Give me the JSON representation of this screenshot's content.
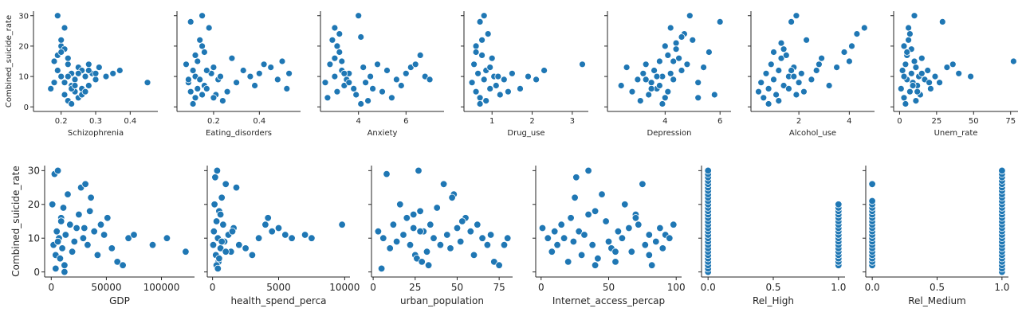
{
  "marker_color": "#1f77b4",
  "marker_edge": "#ffffff",
  "chart_data": [
    {
      "type": "scatter",
      "xlabel": "Schizophrenia",
      "ylabel": "Combined_suicide_rate",
      "xlim": [
        0.12,
        0.48
      ],
      "ylim": [
        -1.5,
        31.5
      ],
      "xticks": [
        0.2,
        0.3,
        0.4
      ],
      "xtick_labels": [
        "0.2",
        "0.3",
        "0.4"
      ],
      "yticks": [
        0,
        10,
        20,
        30
      ],
      "ytick_labels": [
        "0",
        "10",
        "20",
        "30"
      ],
      "x": [
        0.17,
        0.18,
        0.19,
        0.19,
        0.2,
        0.2,
        0.21,
        0.21,
        0.21,
        0.22,
        0.22,
        0.23,
        0.23,
        0.24,
        0.24,
        0.25,
        0.25,
        0.26,
        0.26,
        0.27,
        0.28,
        0.28,
        0.29,
        0.3,
        0.31,
        0.33,
        0.35,
        0.37,
        0.45,
        0.19,
        0.2,
        0.22,
        0.23,
        0.24,
        0.25,
        0.26,
        0.27,
        0.21,
        0.2,
        0.22,
        0.23,
        0.18,
        0.24,
        0.28,
        0.3
      ],
      "y": [
        6,
        15,
        30,
        12,
        10,
        20,
        26,
        8,
        4,
        14,
        2,
        11,
        7,
        5,
        9,
        13,
        3,
        12,
        6,
        10,
        7,
        14,
        11,
        9,
        13,
        10,
        11,
        12,
        8,
        17,
        22,
        16,
        1,
        9,
        11,
        4,
        5,
        19,
        18,
        10,
        6,
        8,
        7,
        12,
        11
      ]
    },
    {
      "type": "scatter",
      "xlabel": "Eating_disorders",
      "ylabel": "",
      "xlim": [
        0.04,
        0.58
      ],
      "ylim": [
        -1.5,
        31.5
      ],
      "xticks": [
        0.2,
        0.4
      ],
      "xtick_labels": [
        "0.2",
        "0.4"
      ],
      "yticks": [
        0,
        10,
        20,
        30
      ],
      "ytick_labels": [],
      "x": [
        0.08,
        0.09,
        0.1,
        0.1,
        0.11,
        0.12,
        0.12,
        0.13,
        0.14,
        0.15,
        0.15,
        0.16,
        0.17,
        0.18,
        0.19,
        0.2,
        0.21,
        0.22,
        0.24,
        0.26,
        0.28,
        0.3,
        0.33,
        0.36,
        0.38,
        0.4,
        0.42,
        0.45,
        0.48,
        0.5,
        0.52,
        0.53,
        0.12,
        0.14,
        0.16,
        0.11,
        0.13,
        0.15,
        0.17,
        0.09,
        0.2,
        0.23
      ],
      "y": [
        14,
        8,
        28,
        5,
        12,
        10,
        3,
        15,
        9,
        30,
        20,
        7,
        6,
        26,
        11,
        13,
        4,
        9,
        2,
        5,
        16,
        8,
        12,
        10,
        7,
        11,
        14,
        13,
        9,
        15,
        6,
        11,
        17,
        22,
        18,
        1,
        6,
        4,
        12,
        9,
        3,
        10
      ]
    },
    {
      "type": "scatter",
      "xlabel": "Anxiety",
      "ylabel": "",
      "xlim": [
        2.4,
        7.6
      ],
      "ylim": [
        -1.5,
        31.5
      ],
      "xticks": [
        4,
        6
      ],
      "xtick_labels": [
        "4",
        "6"
      ],
      "yticks": [
        0,
        10,
        20,
        30
      ],
      "ytick_labels": [],
      "x": [
        2.6,
        2.7,
        2.8,
        2.9,
        3.0,
        3.0,
        3.1,
        3.2,
        3.3,
        3.4,
        3.5,
        3.6,
        3.8,
        3.9,
        4.0,
        4.1,
        4.2,
        4.3,
        4.4,
        4.5,
        4.6,
        4.8,
        5.0,
        5.2,
        5.4,
        5.6,
        5.8,
        6.0,
        6.2,
        6.4,
        6.6,
        6.8,
        7.0,
        3.1,
        3.2,
        3.3,
        3.0,
        3.4,
        4.1,
        3.6
      ],
      "y": [
        8,
        3,
        14,
        22,
        26,
        10,
        5,
        18,
        12,
        7,
        9,
        11,
        6,
        4,
        30,
        23,
        13,
        8,
        2,
        10,
        6,
        14,
        5,
        12,
        3,
        9,
        7,
        11,
        13,
        14,
        17,
        10,
        9,
        20,
        24,
        15,
        16,
        11,
        1,
        8
      ]
    },
    {
      "type": "scatter",
      "xlabel": "Drug_use",
      "ylabel": "",
      "xlim": [
        0.3,
        3.4
      ],
      "ylim": [
        -1.5,
        31.5
      ],
      "xticks": [
        1,
        2,
        3
      ],
      "xtick_labels": [
        "1",
        "2",
        "3"
      ],
      "yticks": [
        0,
        10,
        20,
        30
      ],
      "ytick_labels": [],
      "x": [
        0.5,
        0.55,
        0.6,
        0.6,
        0.65,
        0.7,
        0.7,
        0.75,
        0.8,
        0.8,
        0.85,
        0.9,
        0.95,
        1.0,
        1.05,
        1.1,
        1.2,
        1.3,
        1.4,
        1.5,
        1.7,
        1.9,
        2.1,
        2.3,
        3.25,
        0.75,
        0.85,
        0.6,
        0.7,
        0.95,
        1.15
      ],
      "y": [
        8,
        14,
        20,
        5,
        11,
        28,
        3,
        17,
        30,
        9,
        12,
        24,
        6,
        16,
        10,
        7,
        4,
        9,
        5,
        11,
        6,
        10,
        9,
        12,
        14,
        22,
        2,
        18,
        1,
        13,
        10
      ]
    },
    {
      "type": "scatter",
      "xlabel": "Depression",
      "ylabel": "",
      "xlim": [
        1.9,
        6.4
      ],
      "ylim": [
        -1.5,
        31.5
      ],
      "xticks": [
        4,
        6
      ],
      "xtick_labels": [
        "4",
        "6"
      ],
      "yticks": [
        0,
        10,
        20,
        30
      ],
      "ytick_labels": [],
      "x": [
        2.4,
        2.6,
        2.8,
        3.0,
        3.1,
        3.2,
        3.3,
        3.4,
        3.5,
        3.6,
        3.7,
        3.8,
        3.9,
        4.0,
        4.1,
        4.2,
        4.3,
        4.4,
        4.5,
        4.6,
        4.7,
        4.8,
        4.9,
        5.0,
        5.2,
        5.4,
        5.6,
        5.8,
        6.0,
        3.5,
        3.7,
        3.9,
        4.2,
        4.4,
        4.6,
        3.3,
        3.8,
        4.1,
        5.2,
        4.3,
        4.0,
        4.5
      ],
      "y": [
        7,
        13,
        5,
        9,
        2,
        11,
        14,
        4,
        8,
        12,
        6,
        15,
        10,
        3,
        17,
        26,
        9,
        21,
        16,
        12,
        24,
        14,
        30,
        22,
        8,
        13,
        18,
        4,
        28,
        6,
        10,
        1,
        11,
        19,
        23,
        9,
        7,
        5,
        3,
        15,
        20,
        16
      ]
    },
    {
      "type": "scatter",
      "xlabel": "Alcohol_use",
      "ylabel": "",
      "xlim": [
        0.1,
        5.0
      ],
      "ylim": [
        -1.5,
        31.5
      ],
      "xticks": [
        2,
        4
      ],
      "xtick_labels": [
        "2",
        "4"
      ],
      "yticks": [
        0,
        10,
        20,
        30
      ],
      "ytick_labels": [],
      "x": [
        0.4,
        0.5,
        0.6,
        0.7,
        0.8,
        0.9,
        1.0,
        1.1,
        1.2,
        1.3,
        1.4,
        1.5,
        1.6,
        1.7,
        1.8,
        1.9,
        2.0,
        2.1,
        2.3,
        2.5,
        2.7,
        2.9,
        3.2,
        3.5,
        3.8,
        4.0,
        4.1,
        4.3,
        4.6,
        1.2,
        1.4,
        1.6,
        1.8,
        2.2,
        0.8,
        1.0,
        1.9,
        2.8,
        1.3,
        1.7
      ],
      "y": [
        5,
        8,
        3,
        11,
        6,
        14,
        9,
        4,
        12,
        16,
        7,
        17,
        10,
        28,
        13,
        30,
        8,
        11,
        22,
        9,
        12,
        16,
        7,
        13,
        18,
        15,
        20,
        24,
        26,
        2,
        19,
        6,
        10,
        5,
        1,
        18,
        4,
        14,
        21,
        12
      ]
    },
    {
      "type": "scatter",
      "xlabel": "Unem_rate",
      "ylabel": "",
      "xlim": [
        -4,
        80
      ],
      "ylim": [
        -1.5,
        31.5
      ],
      "xticks": [
        0,
        25,
        50,
        75
      ],
      "xtick_labels": [
        "0",
        "25",
        "50",
        "75"
      ],
      "yticks": [
        0,
        10,
        20,
        30
      ],
      "ytick_labels": [],
      "x": [
        1,
        2,
        3,
        3,
        4,
        5,
        5,
        6,
        7,
        7,
        8,
        9,
        10,
        10,
        11,
        12,
        13,
        14,
        15,
        17,
        19,
        21,
        24,
        27,
        29,
        32,
        36,
        40,
        48,
        77,
        4,
        6,
        8,
        9,
        12,
        3,
        5,
        11,
        15,
        20
      ],
      "y": [
        6,
        12,
        20,
        3,
        14,
        9,
        17,
        26,
        5,
        24,
        11,
        8,
        30,
        15,
        13,
        7,
        10,
        4,
        11,
        9,
        12,
        6,
        10,
        8,
        28,
        13,
        14,
        11,
        10,
        15,
        1,
        22,
        19,
        7,
        5,
        10,
        18,
        2,
        16,
        8
      ]
    },
    {
      "type": "scatter",
      "xlabel": "GDP",
      "ylabel": "Combined_suicide_rate",
      "xlim": [
        -6000,
        130000
      ],
      "ylim": [
        -1.5,
        31.5
      ],
      "xticks": [
        0,
        50000,
        100000
      ],
      "xtick_labels": [
        "0",
        "50000",
        "100000"
      ],
      "yticks": [
        0,
        10,
        20,
        30
      ],
      "ytick_labels": [
        "0",
        "10",
        "20",
        "30"
      ],
      "x": [
        1000,
        2000,
        3000,
        4000,
        5000,
        6000,
        7000,
        8000,
        9000,
        10000,
        11000,
        12000,
        13000,
        15000,
        17000,
        19000,
        21000,
        23000,
        25000,
        27000,
        29000,
        31000,
        33000,
        36000,
        39000,
        42000,
        45000,
        48000,
        51000,
        55000,
        60000,
        65000,
        70000,
        75000,
        92000,
        105000,
        122000,
        4000,
        6000,
        9000,
        30000,
        35000,
        12000
      ],
      "y": [
        20,
        8,
        29,
        5,
        12,
        30,
        10,
        4,
        16,
        7,
        19,
        2,
        11,
        23,
        14,
        6,
        9,
        13,
        17,
        25,
        10,
        26,
        8,
        22,
        12,
        5,
        14,
        11,
        16,
        7,
        3,
        2,
        10,
        11,
        8,
        10,
        6,
        1,
        9,
        15,
        13,
        18,
        0
      ]
    },
    {
      "type": "scatter",
      "xlabel": "health_spend_perca",
      "ylabel": "",
      "xlim": [
        -400,
        10400
      ],
      "ylim": [
        -1.5,
        31.5
      ],
      "xticks": [
        0,
        5000,
        10000
      ],
      "xtick_labels": [
        "0",
        "5000",
        "10000"
      ],
      "yticks": [
        0,
        10,
        20,
        30
      ],
      "ytick_labels": [],
      "x": [
        50,
        100,
        150,
        200,
        250,
        300,
        350,
        400,
        450,
        500,
        600,
        700,
        800,
        900,
        1000,
        1200,
        1400,
        1600,
        1800,
        2000,
        2500,
        3000,
        3500,
        4000,
        4200,
        4500,
        5000,
        5500,
        6000,
        7000,
        7500,
        9800,
        300,
        400,
        500,
        600,
        700,
        1000,
        1500
      ],
      "y": [
        8,
        12,
        20,
        28,
        5,
        15,
        30,
        10,
        3,
        18,
        7,
        22,
        14,
        9,
        26,
        11,
        6,
        13,
        25,
        8,
        7,
        5,
        10,
        14,
        16,
        12,
        13,
        11,
        10,
        11,
        10,
        14,
        2,
        1,
        4,
        17,
        9,
        6,
        12
      ]
    },
    {
      "type": "scatter",
      "xlabel": "urban_population",
      "ylabel": "",
      "xlim": [
        -1,
        83
      ],
      "ylim": [
        -1.5,
        31.5
      ],
      "xticks": [
        0,
        25,
        50,
        75
      ],
      "xtick_labels": [
        "0",
        "25",
        "50",
        "75"
      ],
      "yticks": [
        0,
        10,
        20,
        30
      ],
      "ytick_labels": [],
      "x": [
        3,
        5,
        6,
        8,
        10,
        12,
        14,
        16,
        18,
        20,
        22,
        24,
        25,
        26,
        27,
        28,
        29,
        30,
        32,
        34,
        36,
        38,
        40,
        42,
        44,
        46,
        48,
        50,
        52,
        55,
        58,
        60,
        62,
        65,
        68,
        70,
        72,
        75,
        78,
        80,
        24,
        28,
        33,
        47,
        53
      ],
      "y": [
        12,
        1,
        10,
        29,
        7,
        14,
        9,
        20,
        11,
        16,
        8,
        13,
        5,
        4,
        30,
        18,
        3,
        12,
        6,
        14,
        10,
        19,
        8,
        26,
        11,
        7,
        23,
        13,
        9,
        16,
        12,
        5,
        14,
        10,
        8,
        11,
        3,
        2,
        8,
        10,
        17,
        12,
        2,
        22,
        15
      ]
    },
    {
      "type": "scatter",
      "xlabel": "Internet_access_percap",
      "ylabel": "",
      "xlim": [
        -4,
        104
      ],
      "ylim": [
        -1.5,
        31.5
      ],
      "xticks": [
        0,
        50,
        100
      ],
      "xtick_labels": [
        "0",
        "50",
        "100"
      ],
      "yticks": [
        0,
        10,
        20,
        30
      ],
      "ytick_labels": [],
      "x": [
        1,
        5,
        8,
        10,
        12,
        15,
        17,
        20,
        22,
        24,
        26,
        28,
        30,
        32,
        35,
        38,
        40,
        42,
        45,
        48,
        50,
        52,
        55,
        57,
        60,
        62,
        65,
        67,
        70,
        72,
        75,
        77,
        80,
        82,
        85,
        88,
        90,
        92,
        95,
        98,
        25,
        40,
        55,
        70,
        80,
        35
      ],
      "y": [
        13,
        10,
        6,
        12,
        8,
        14,
        10,
        3,
        16,
        9,
        28,
        12,
        5,
        11,
        30,
        8,
        18,
        4,
        23,
        15,
        9,
        7,
        3,
        12,
        10,
        20,
        13,
        6,
        17,
        14,
        26,
        8,
        11,
        2,
        9,
        13,
        7,
        11,
        10,
        14,
        22,
        2,
        6,
        16,
        5,
        17
      ]
    },
    {
      "type": "scatter",
      "xlabel": "Rel_High",
      "ylabel": "",
      "xlim": [
        -0.05,
        1.05
      ],
      "ylim": [
        -1.5,
        31.5
      ],
      "xticks": [
        0,
        0.5,
        1
      ],
      "xtick_labels": [
        "0.0",
        "0.5",
        "1.0"
      ],
      "yticks": [
        0,
        10,
        20,
        30
      ],
      "ytick_labels": [],
      "x": [
        0,
        0,
        0,
        0,
        0,
        0,
        0,
        0,
        0,
        0,
        0,
        0,
        0,
        0,
        0,
        0,
        0,
        0,
        0,
        0,
        0,
        0,
        0,
        0,
        0,
        0,
        0,
        0,
        0,
        0,
        0,
        1,
        1,
        1,
        1,
        1,
        1,
        1,
        1,
        1,
        1,
        1,
        1,
        1,
        1,
        1,
        1,
        1,
        1,
        1
      ],
      "y": [
        0,
        1,
        2,
        3,
        4,
        5,
        6,
        7,
        8,
        9,
        10,
        11,
        12,
        13,
        14,
        15,
        16,
        17,
        18,
        19,
        20,
        21,
        22,
        23,
        24,
        25,
        26,
        27,
        28,
        29,
        30,
        2,
        3,
        4,
        5,
        6,
        7,
        8,
        9,
        10,
        11,
        12,
        13,
        14,
        15,
        16,
        17,
        18,
        19,
        20
      ]
    },
    {
      "type": "scatter",
      "xlabel": "Rel_Medium",
      "ylabel": "",
      "xlim": [
        -0.05,
        1.05
      ],
      "ylim": [
        -1.5,
        31.5
      ],
      "xticks": [
        0,
        0.5,
        1
      ],
      "xtick_labels": [
        "0.0",
        "0.5",
        "1.0"
      ],
      "yticks": [
        0,
        10,
        20,
        30
      ],
      "ytick_labels": [],
      "x": [
        0,
        0,
        0,
        0,
        0,
        0,
        0,
        0,
        0,
        0,
        0,
        0,
        0,
        0,
        0,
        0,
        0,
        0,
        0,
        0,
        0,
        1,
        1,
        1,
        1,
        1,
        1,
        1,
        1,
        1,
        1,
        1,
        1,
        1,
        1,
        1,
        1,
        1,
        1,
        1,
        1,
        1,
        1,
        1,
        1,
        1,
        1,
        1,
        1,
        1,
        1,
        1
      ],
      "y": [
        2,
        3,
        4,
        5,
        6,
        7,
        8,
        9,
        10,
        11,
        12,
        13,
        14,
        15,
        16,
        17,
        18,
        19,
        20,
        21,
        26,
        0,
        1,
        2,
        3,
        4,
        5,
        6,
        7,
        8,
        9,
        10,
        11,
        12,
        13,
        14,
        15,
        16,
        17,
        18,
        19,
        20,
        21,
        22,
        23,
        24,
        25,
        26,
        27,
        28,
        29,
        30
      ]
    }
  ]
}
